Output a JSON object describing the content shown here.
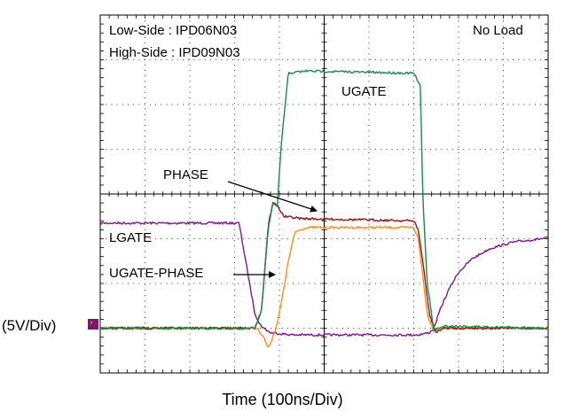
{
  "chart_data": {
    "type": "line",
    "title": "",
    "xlabel": "Time  (100ns/Div)",
    "ylabel": "(5V/Div)",
    "grid": true,
    "x_divisions": 10,
    "y_divisions": 8,
    "xlim": [
      0,
      10
    ],
    "ylim": [
      -1,
      7
    ],
    "annotations": {
      "low_side": "Low-Side : IPD06N03",
      "high_side": "High-Side : IPD09N03",
      "load": "No Load",
      "ugate": "UGATE",
      "phase": "PHASE",
      "lgate": "LGATE",
      "ugate_phase": "UGATE-PHASE"
    },
    "series": [
      {
        "name": "UGATE",
        "color": "#1a8a4a",
        "x": [
          0,
          3.45,
          3.6,
          3.75,
          3.85,
          3.95,
          4.05,
          4.2,
          4.6,
          7.0,
          7.15,
          7.2,
          7.3,
          7.45,
          7.55,
          7.7,
          10
        ],
        "y": [
          0,
          0,
          0.4,
          2.2,
          2.8,
          2.7,
          4.2,
          5.7,
          5.75,
          5.7,
          5.4,
          3.0,
          1.0,
          -0.05,
          0.0,
          0.05,
          0.0
        ]
      },
      {
        "name": "PHASE",
        "color": "#8b1a1a",
        "x": [
          0,
          3.45,
          3.6,
          3.75,
          3.85,
          3.95,
          4.1,
          4.5,
          7.0,
          7.1,
          7.2,
          7.35,
          7.5,
          7.65,
          10
        ],
        "y": [
          0,
          0,
          0.4,
          2.3,
          2.8,
          2.75,
          2.5,
          2.45,
          2.4,
          2.2,
          1.5,
          0.3,
          -0.1,
          0.0,
          0.0
        ]
      },
      {
        "name": "LGATE",
        "color": "#7a1a8a",
        "x": [
          0,
          3.1,
          3.3,
          3.45,
          3.55,
          3.65,
          3.8,
          4.3,
          7.1,
          7.35,
          7.45,
          7.6,
          7.8,
          8.0,
          8.3,
          8.7,
          9.2,
          10
        ],
        "y": [
          2.35,
          2.35,
          1.2,
          0.35,
          0.1,
          0.0,
          -0.1,
          -0.15,
          -0.15,
          -0.1,
          0.0,
          0.45,
          0.9,
          1.25,
          1.55,
          1.78,
          1.92,
          2.02
        ]
      },
      {
        "name": "UGATE-PHASE",
        "color": "#ff8c1a",
        "x": [
          0,
          3.5,
          3.65,
          3.75,
          3.85,
          3.95,
          4.05,
          4.2,
          4.35,
          4.6,
          7.0,
          7.1,
          7.2,
          7.3,
          7.45,
          7.6,
          10
        ],
        "y": [
          0,
          0,
          -0.2,
          -0.45,
          -0.2,
          0.1,
          0.6,
          1.5,
          2.15,
          2.25,
          2.25,
          2.0,
          1.2,
          0.3,
          -0.05,
          0.0,
          0.0
        ]
      }
    ]
  }
}
